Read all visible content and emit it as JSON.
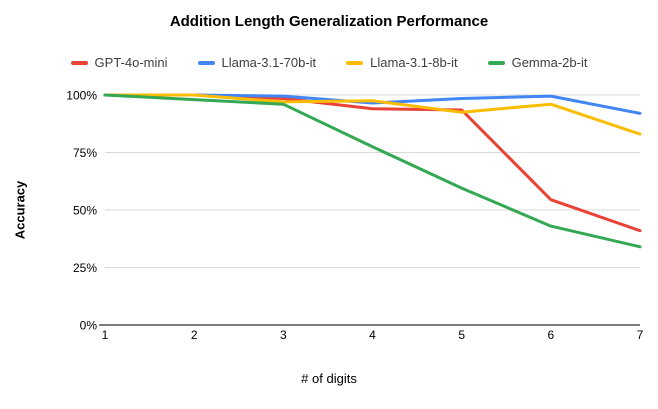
{
  "chart_data": {
    "type": "line",
    "title": "Addition Length Generalization Performance",
    "xlabel": "# of digits",
    "ylabel": "Accuracy",
    "x": [
      1,
      2,
      3,
      4,
      5,
      6,
      7
    ],
    "x_tick_labels": [
      "1",
      "2",
      "3",
      "4",
      "5",
      "6",
      "7"
    ],
    "series": [
      {
        "name": "GPT-4o-mini",
        "color": "#EA4335",
        "values": [
          100,
          100,
          98.5,
          94,
          93.5,
          54.5,
          41
        ]
      },
      {
        "name": "Llama-3.1-70b-it",
        "color": "#4285F4",
        "values": [
          100,
          100,
          99.5,
          96.5,
          98.5,
          99.5,
          92
        ]
      },
      {
        "name": "Llama-3.1-8b-it",
        "color": "#FBBC04",
        "values": [
          100,
          100,
          97,
          97.5,
          92.5,
          96,
          83
        ]
      },
      {
        "name": "Gemma-2b-it",
        "color": "#34A853",
        "values": [
          100,
          98,
          96,
          77.5,
          59.5,
          43,
          34
        ]
      }
    ],
    "y_ticks": [
      {
        "value": 100,
        "label": "100%"
      },
      {
        "value": 75,
        "label": "75%"
      },
      {
        "value": 50,
        "label": "50%"
      },
      {
        "value": 25,
        "label": "25%"
      },
      {
        "value": 0,
        "label": "0%"
      }
    ],
    "ylim": [
      0,
      100
    ],
    "xlim": [
      1,
      7
    ],
    "grid": true,
    "legend_position": "top",
    "background_color": "#ffffff",
    "gridline_color": "#d9d9d9",
    "axis_line_color": "#333333",
    "tick_label_color": "#000000"
  }
}
